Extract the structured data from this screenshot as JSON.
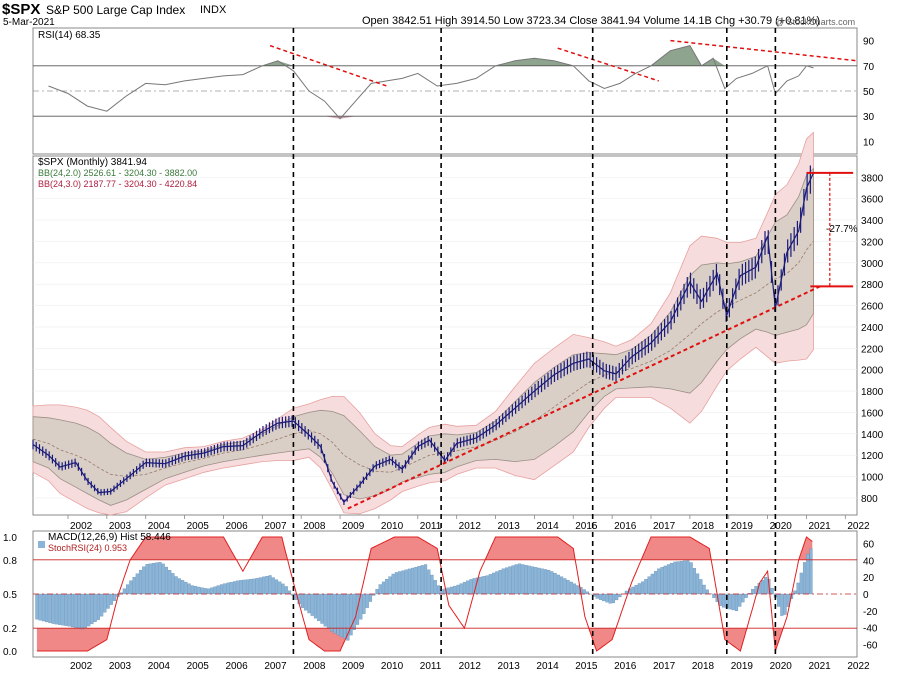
{
  "header": {
    "symbol": "$SPX",
    "name": "S&P 500 Large Cap Index",
    "exchange": "INDX",
    "date": "5-Mar-2021",
    "ohlc_text": "Open 3842.51  High 3914.50  Low 3723.34  Close 3841.94  Volume 14.1B  Chg +30.79 (+0.81%)",
    "watermark": "@ StockCharts.com"
  },
  "colors": {
    "price": "#1a1a7a",
    "bb_fill": "#d9cfc6",
    "bb_outer_fill": "#f6dcdc",
    "rsi_line": "#777777",
    "overbought_fill": "#8ea48e",
    "oversold_fill": "#c9a3b0",
    "trend_red": "#e01010",
    "macd_hist": "#8ab4d8",
    "stochrsi_fill": "#f08888",
    "stochrsi_line": "#e02020",
    "vertical_line": "#000000"
  },
  "chart_data": [
    {
      "type": "line",
      "panel": "RSI",
      "title": "RSI(14) 68.35",
      "y_ticks": [
        90,
        70,
        50,
        30,
        10
      ],
      "ylim": [
        0,
        100
      ],
      "thresholds": [
        70,
        30
      ],
      "x": [
        2001.5,
        2002.0,
        2002.5,
        2003.0,
        2003.5,
        2004.0,
        2004.5,
        2005.0,
        2005.5,
        2006.0,
        2006.5,
        2007.0,
        2007.4,
        2007.8,
        2008.2,
        2008.6,
        2009.0,
        2009.4,
        2009.8,
        2010.2,
        2010.6,
        2011.0,
        2011.5,
        2012.0,
        2012.5,
        2013.0,
        2013.5,
        2014.0,
        2014.5,
        2015.0,
        2015.4,
        2015.8,
        2016.2,
        2016.6,
        2017.0,
        2017.5,
        2018.0,
        2018.3,
        2018.6,
        2018.9,
        2019.2,
        2019.6,
        2020.0,
        2020.2,
        2020.5,
        2020.8,
        2021.0,
        2021.18
      ],
      "values": [
        54,
        48,
        38,
        34,
        46,
        56,
        55,
        58,
        60,
        62,
        63,
        70,
        74,
        66,
        50,
        42,
        28,
        42,
        56,
        58,
        60,
        64,
        54,
        56,
        60,
        70,
        74,
        76,
        74,
        70,
        58,
        52,
        56,
        64,
        70,
        82,
        86,
        70,
        76,
        52,
        60,
        64,
        70,
        48,
        58,
        62,
        70,
        68.35
      ]
    },
    {
      "type": "line",
      "panel": "Price",
      "series_labels": [
        "$SPX (Monthly) 3841.94",
        "BB(24,2.0) 2526.61 - 3204.30 - 3882.00",
        "BB(24,3.0) 2187.77 - 3204.30 - 4220.84"
      ],
      "ylim": [
        640,
        4000
      ],
      "y_ticks": [
        3800,
        3600,
        3400,
        3200,
        3000,
        2800,
        2600,
        2400,
        2200,
        2000,
        1800,
        1600,
        1400,
        1200,
        1000,
        800
      ],
      "x_ticks": [
        2002,
        2003,
        2004,
        2005,
        2006,
        2007,
        2008,
        2009,
        2010,
        2011,
        2012,
        2013,
        2014,
        2015,
        2016,
        2017,
        2018,
        2019,
        2020,
        2021,
        2022
      ],
      "xlim": [
        2001.1,
        2022.3
      ],
      "annotation": "-27.7%",
      "annotation_levels": [
        3841.94,
        2780
      ],
      "x": [
        2001.1,
        2001.5,
        2001.8,
        2002.2,
        2002.5,
        2002.8,
        2003.1,
        2003.5,
        2004.0,
        2004.5,
        2005.0,
        2005.5,
        2006.0,
        2006.5,
        2007.0,
        2007.4,
        2007.8,
        2008.2,
        2008.5,
        2008.8,
        2009.1,
        2009.5,
        2009.9,
        2010.3,
        2010.6,
        2011.0,
        2011.3,
        2011.7,
        2012.0,
        2012.5,
        2013.0,
        2013.5,
        2014.0,
        2014.5,
        2015.0,
        2015.4,
        2015.8,
        2016.1,
        2016.5,
        2017.0,
        2017.5,
        2018.0,
        2018.3,
        2018.7,
        2018.95,
        2019.3,
        2019.7,
        2020.0,
        2020.2,
        2020.5,
        2020.8,
        2021.0,
        2021.18
      ],
      "values": [
        1300,
        1200,
        1090,
        1130,
        960,
        850,
        860,
        980,
        1130,
        1120,
        1190,
        1220,
        1280,
        1290,
        1420,
        1500,
        1520,
        1390,
        1280,
        950,
        760,
        920,
        1100,
        1160,
        1070,
        1280,
        1340,
        1150,
        1310,
        1360,
        1480,
        1640,
        1800,
        1950,
        2060,
        2100,
        1990,
        1960,
        2120,
        2250,
        2450,
        2820,
        2640,
        2900,
        2510,
        2880,
        2960,
        3250,
        2580,
        3100,
        3300,
        3700,
        3841.94
      ],
      "bb2_mid": [
        1350,
        1310,
        1250,
        1200,
        1150,
        1080,
        1020,
        1000,
        1020,
        1080,
        1130,
        1170,
        1220,
        1250,
        1300,
        1350,
        1400,
        1430,
        1400,
        1320,
        1200,
        1110,
        1050,
        1040,
        1080,
        1150,
        1200,
        1220,
        1240,
        1280,
        1340,
        1420,
        1520,
        1650,
        1780,
        1880,
        1950,
        1980,
        2010,
        2080,
        2180,
        2330,
        2430,
        2540,
        2590,
        2650,
        2720,
        2800,
        2850,
        2900,
        3000,
        3120,
        3204.3
      ],
      "bb2_upper": [
        1560,
        1550,
        1530,
        1500,
        1460,
        1400,
        1310,
        1220,
        1160,
        1180,
        1220,
        1240,
        1300,
        1330,
        1400,
        1480,
        1560,
        1600,
        1620,
        1610,
        1570,
        1430,
        1280,
        1200,
        1210,
        1310,
        1380,
        1400,
        1390,
        1410,
        1520,
        1700,
        1880,
        2020,
        2140,
        2160,
        2150,
        2140,
        2190,
        2320,
        2540,
        2880,
        2980,
        3000,
        2990,
        3010,
        3060,
        3250,
        3380,
        3450,
        3620,
        3820,
        3882.0
      ],
      "bb2_lower": [
        1140,
        1080,
        980,
        900,
        840,
        780,
        730,
        780,
        880,
        980,
        1040,
        1100,
        1140,
        1170,
        1200,
        1220,
        1240,
        1260,
        1180,
        1030,
        830,
        790,
        820,
        880,
        950,
        990,
        1020,
        1040,
        1090,
        1150,
        1160,
        1140,
        1160,
        1280,
        1420,
        1600,
        1750,
        1820,
        1830,
        1840,
        1820,
        1780,
        1880,
        2080,
        2190,
        2290,
        2380,
        2350,
        2320,
        2350,
        2380,
        2420,
        2526.61
      ],
      "bb3_upper": [
        1660,
        1670,
        1670,
        1650,
        1620,
        1560,
        1460,
        1330,
        1230,
        1230,
        1270,
        1280,
        1330,
        1360,
        1440,
        1540,
        1640,
        1680,
        1720,
        1750,
        1750,
        1600,
        1400,
        1290,
        1280,
        1390,
        1460,
        1490,
        1470,
        1480,
        1610,
        1840,
        2060,
        2200,
        2330,
        2300,
        2260,
        2220,
        2280,
        2430,
        2720,
        3160,
        3250,
        3230,
        3190,
        3190,
        3230,
        3470,
        3640,
        3730,
        3930,
        4160,
        4220.84
      ],
      "bb3_lower": [
        1040,
        960,
        840,
        760,
        700,
        660,
        640,
        670,
        800,
        920,
        980,
        1040,
        1080,
        1110,
        1140,
        1150,
        1150,
        1180,
        1080,
        880,
        660,
        650,
        700,
        780,
        860,
        910,
        940,
        960,
        1020,
        1080,
        1080,
        1010,
        970,
        1100,
        1230,
        1460,
        1640,
        1740,
        1740,
        1740,
        1640,
        1500,
        1610,
        1850,
        1990,
        2100,
        2210,
        2120,
        2060,
        2080,
        2090,
        2100,
        2187.77
      ]
    },
    {
      "type": "bar",
      "panel": "MACD",
      "title": "MACD(12,26,9) Hist 58.446",
      "y_ticks_right": [
        60,
        40,
        20,
        0,
        -20,
        -40,
        -60
      ],
      "ylim_right": [
        -70,
        70
      ],
      "x": [
        2001.2,
        2001.6,
        2002.0,
        2002.4,
        2002.8,
        2003.2,
        2003.6,
        2004.0,
        2004.4,
        2004.8,
        2005.2,
        2005.6,
        2006.0,
        2006.4,
        2006.8,
        2007.2,
        2007.6,
        2008.0,
        2008.4,
        2008.8,
        2009.2,
        2009.6,
        2010.0,
        2010.4,
        2010.8,
        2011.2,
        2011.6,
        2012.0,
        2012.4,
        2012.8,
        2013.2,
        2013.6,
        2014.0,
        2014.4,
        2014.8,
        2015.2,
        2015.6,
        2016.0,
        2016.4,
        2016.8,
        2017.2,
        2017.6,
        2018.0,
        2018.4,
        2018.8,
        2019.2,
        2019.6,
        2020.0,
        2020.4,
        2020.8,
        2021.0,
        2021.18
      ],
      "values": [
        -30,
        -35,
        -38,
        -42,
        -30,
        -8,
        15,
        35,
        38,
        20,
        10,
        6,
        12,
        16,
        18,
        22,
        10,
        -15,
        -30,
        -45,
        -55,
        -25,
        10,
        25,
        30,
        35,
        5,
        10,
        18,
        22,
        30,
        36,
        32,
        28,
        18,
        8,
        -5,
        -12,
        5,
        15,
        30,
        38,
        40,
        8,
        -15,
        -20,
        5,
        22,
        -30,
        15,
        45,
        58.446
      ]
    },
    {
      "type": "line",
      "panel": "StochRSI",
      "title": "StochRSI(24) 0.953",
      "y_ticks_left": [
        1.0,
        0.8,
        0.5,
        0.2,
        0.0
      ],
      "ylim": [
        0,
        1
      ],
      "thresholds": [
        0.8,
        0.2
      ],
      "x": [
        2001.2,
        2002.0,
        2002.5,
        2003.0,
        2003.3,
        2003.6,
        2004.0,
        2005.0,
        2006.0,
        2006.5,
        2007.0,
        2007.5,
        2007.8,
        2008.2,
        2008.6,
        2009.0,
        2009.4,
        2009.8,
        2010.4,
        2011.0,
        2011.5,
        2011.8,
        2012.2,
        2012.6,
        2013.0,
        2014.0,
        2014.6,
        2015.0,
        2015.3,
        2015.6,
        2016.0,
        2016.5,
        2017.0,
        2017.5,
        2018.0,
        2018.5,
        2018.9,
        2019.3,
        2019.8,
        2020.0,
        2020.2,
        2020.5,
        2020.8,
        2021.0,
        2021.18
      ],
      "values": [
        0.0,
        0.0,
        0.0,
        0.1,
        0.5,
        0.8,
        1.0,
        1.0,
        1.0,
        0.7,
        1.0,
        1.0,
        0.6,
        0.1,
        0.0,
        0.0,
        0.3,
        0.9,
        1.0,
        1.0,
        0.9,
        0.4,
        0.2,
        0.7,
        1.0,
        1.0,
        1.0,
        0.9,
        0.3,
        0.0,
        0.1,
        0.6,
        1.0,
        1.0,
        1.0,
        0.9,
        0.1,
        0.0,
        0.6,
        0.7,
        0.0,
        0.3,
        0.8,
        1.0,
        0.953
      ]
    }
  ],
  "vertical_markers": [
    2007.8,
    2011.6,
    2015.5,
    2018.95,
    2020.2
  ]
}
